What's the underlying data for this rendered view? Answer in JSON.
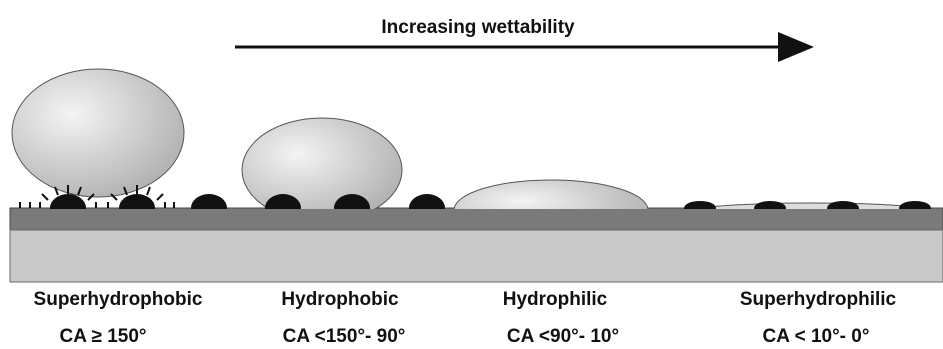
{
  "header": {
    "title": "Increasing wettability"
  },
  "states": [
    {
      "label": "Superhydrophobic",
      "angle": "CA ≥ 150°"
    },
    {
      "label": "Hydrophobic",
      "angle": "CA <150°- 90°"
    },
    {
      "label": "Hydrophilic",
      "angle": "CA <90°- 10°"
    },
    {
      "label": "Superhydrophilic",
      "angle": "CA < 10°- 0°"
    }
  ]
}
